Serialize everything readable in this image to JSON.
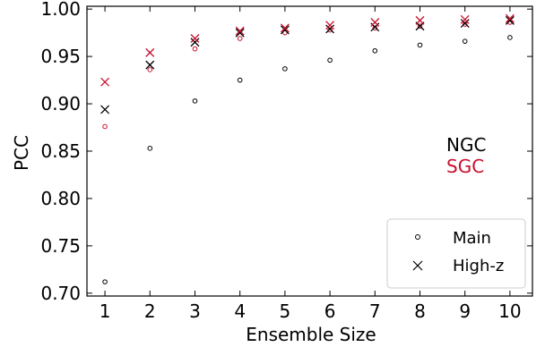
{
  "chart_data": {
    "type": "scatter",
    "xlabel": "Ensemble Size",
    "ylabel": "PCC",
    "xlim": [
      0.6,
      10.5
    ],
    "ylim": [
      0.697,
      1.003
    ],
    "x_ticks": [
      1,
      2,
      3,
      4,
      5,
      6,
      7,
      8,
      9,
      10
    ],
    "y_ticks": [
      0.7,
      0.75,
      0.8,
      0.85,
      0.9,
      0.95,
      1.0
    ],
    "y_tick_labels": [
      "0.70",
      "0.75",
      "0.80",
      "0.85",
      "0.90",
      "0.95",
      "1.00"
    ],
    "grid": false,
    "legend_placement": "lower-right",
    "legend": [
      {
        "label": "Main",
        "marker": "circle"
      },
      {
        "label": "High-z",
        "marker": "x"
      }
    ],
    "annotations": [
      {
        "text": "NGC",
        "color": "#000000"
      },
      {
        "text": "SGC",
        "color": "#c8102e"
      }
    ],
    "x": [
      1,
      2,
      3,
      4,
      5,
      6,
      7,
      8,
      9,
      10
    ],
    "series": [
      {
        "sample": "Main",
        "region": "NGC",
        "marker": "circle",
        "color": "#000000",
        "values": [
          0.712,
          0.853,
          0.903,
          0.925,
          0.937,
          0.946,
          0.956,
          0.962,
          0.966,
          0.97
        ]
      },
      {
        "sample": "Main",
        "region": "SGC",
        "marker": "circle",
        "color": "#c8102e",
        "values": [
          0.876,
          0.936,
          0.958,
          0.969,
          0.975,
          0.978,
          0.98,
          0.982,
          0.984,
          0.986
        ]
      },
      {
        "sample": "High-z",
        "region": "NGC",
        "marker": "x",
        "color": "#000000",
        "values": [
          0.894,
          0.941,
          0.965,
          0.975,
          0.978,
          0.979,
          0.981,
          0.982,
          0.985,
          0.988
        ]
      },
      {
        "sample": "High-z",
        "region": "SGC",
        "marker": "x",
        "color": "#c8102e",
        "values": [
          0.923,
          0.954,
          0.969,
          0.977,
          0.98,
          0.983,
          0.986,
          0.988,
          0.989,
          0.99
        ]
      }
    ]
  }
}
